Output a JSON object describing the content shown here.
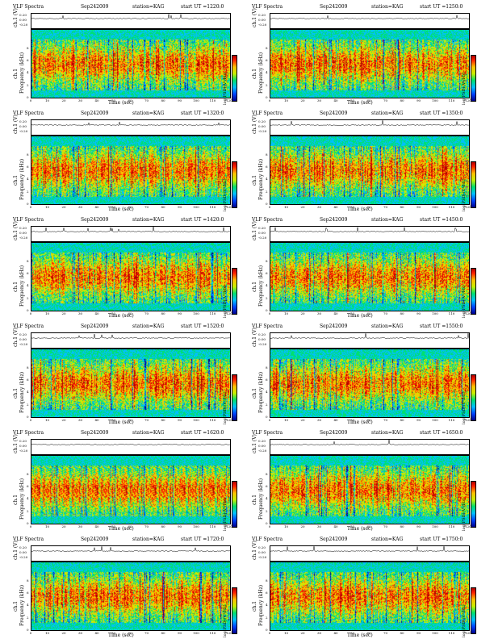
{
  "panels": [
    {
      "title": "VLF Spectra",
      "date": "Sep242009",
      "station": "station=KAG",
      "start": "start UT =1220:0"
    },
    {
      "title": "VLF Spectra",
      "date": "Sep242009",
      "station": "station=KAG",
      "start": "start UT =1250:0"
    },
    {
      "title": "VLF Spectra",
      "date": "Sep242009",
      "station": "station=KAG",
      "start": "start UT =1320:0"
    },
    {
      "title": "VLF Spectra",
      "date": "Sep242009",
      "station": "station=KAG",
      "start": "start UT =1350:0"
    },
    {
      "title": "VLF Spectra",
      "date": "Sep242009",
      "station": "station=KAG",
      "start": "start UT =1420:0"
    },
    {
      "title": "VLF Spectra",
      "date": "Sep242009",
      "station": "station=KAG",
      "start": "start UT =1450:0"
    },
    {
      "title": "VLF Spectra",
      "date": "Sep242009",
      "station": "station=KAG",
      "start": "start UT =1520:0"
    },
    {
      "title": "VLF Spectra",
      "date": "Sep242009",
      "station": "station=KAG",
      "start": "start UT =1550:0"
    },
    {
      "title": "VLF Spectra",
      "date": "Sep242009",
      "station": "station=KAG",
      "start": "start UT =1620:0"
    },
    {
      "title": "VLF Spectra",
      "date": "Sep242009",
      "station": "station=KAG",
      "start": "start UT =1650:0"
    },
    {
      "title": "VLF Spectra",
      "date": "Sep242009",
      "station": "station=KAG",
      "start": "start UT =1720:0"
    },
    {
      "title": "VLF Spectra",
      "date": "Sep242009",
      "station": "station=KAG",
      "start": "start UT =1750:0"
    }
  ],
  "labels": {
    "ts_ylabel": "ch.1 (V)",
    "spec_ylabel_top": "ch.1",
    "spec_ylabel": "Frequency (kHz)",
    "xlabel": "Time (sec)",
    "cbar_label": "log(PSD)(V²/Hz)"
  },
  "chart_data": {
    "type": "heatmap",
    "count": 12,
    "x_ticks": [
      "0",
      "10",
      "20",
      "30",
      "40",
      "50",
      "60",
      "70",
      "80",
      "90",
      "100",
      "110",
      "120"
    ],
    "xlim": [
      0,
      120
    ],
    "freq_ticks": [
      "0",
      "2",
      "4",
      "6",
      "8"
    ],
    "ylim_khz": [
      0,
      11
    ],
    "ts_ticks": [
      "0.20",
      "0.00",
      "-0.20"
    ],
    "ts_ylim": [
      -0.3,
      0.3
    ],
    "colormap": [
      "#00008a",
      "#0044ff",
      "#00c0ff",
      "#00e070",
      "#c8f000",
      "#ffc000",
      "#ff2000",
      "#b00000"
    ]
  }
}
